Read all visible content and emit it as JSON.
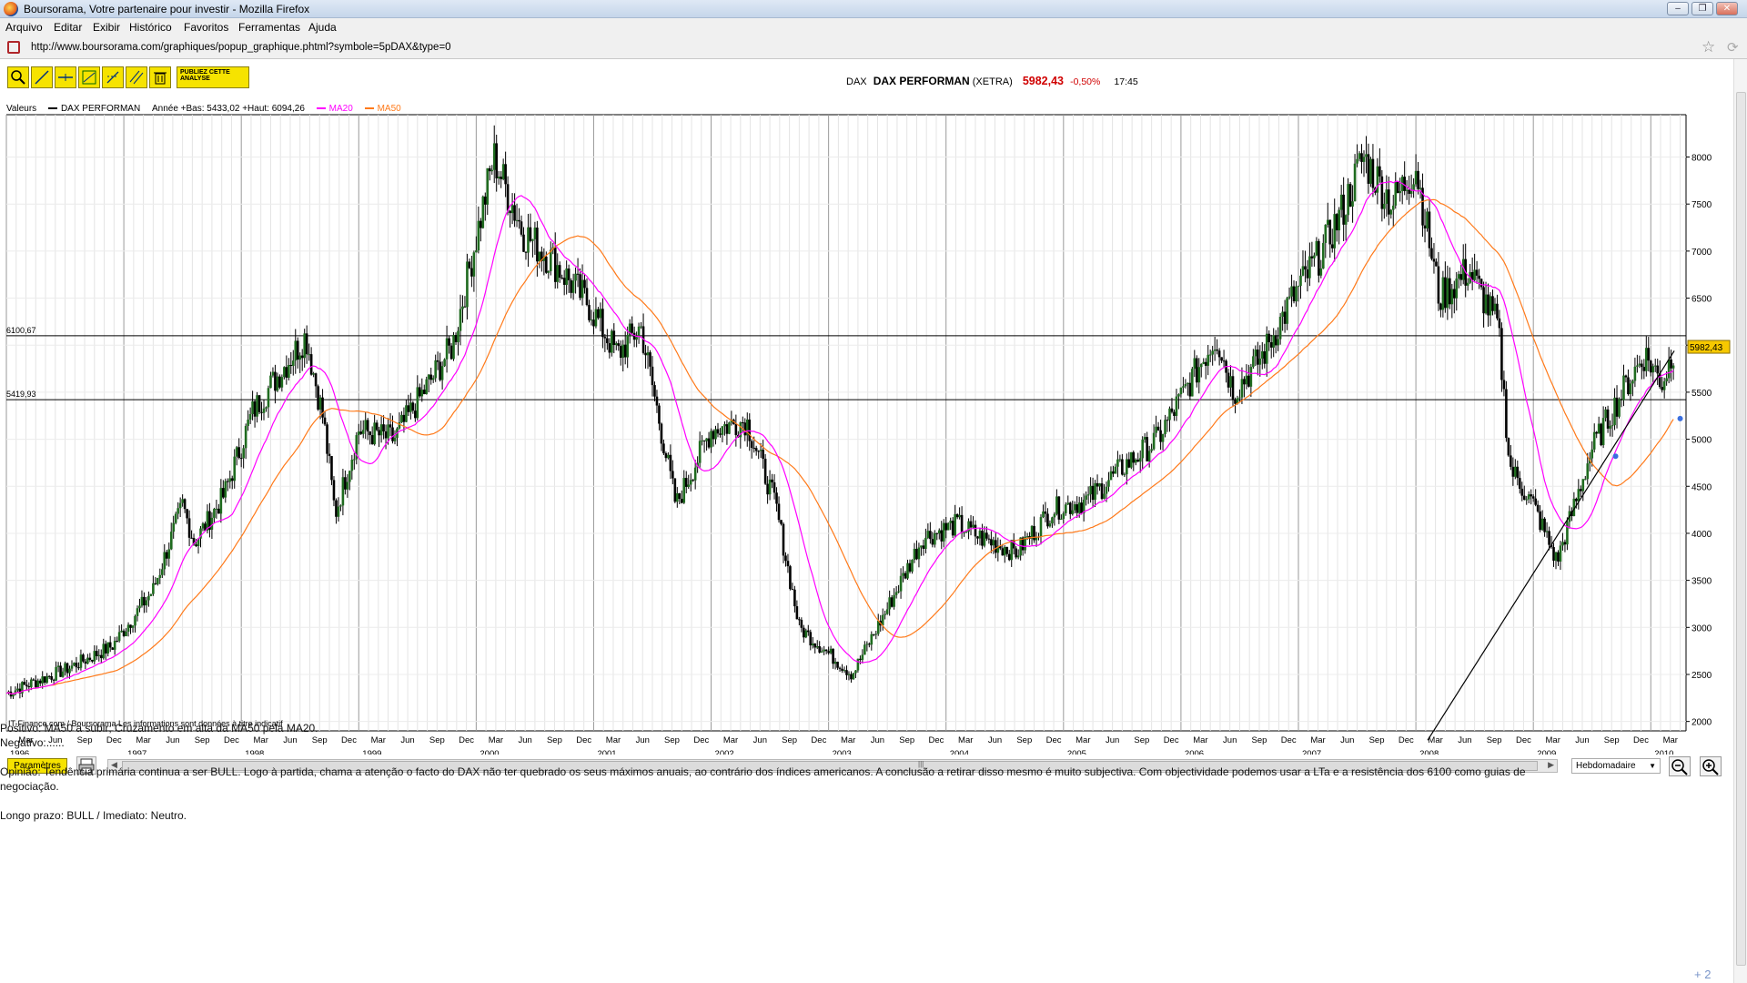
{
  "browser": {
    "window_title": "Boursorama, Votre partenaire pour investir - Mozilla Firefox",
    "menu": [
      "Arquivo",
      "Editar",
      "Exibir",
      "Histórico",
      "Favoritos",
      "Ferramentas",
      "Ajuda"
    ],
    "url": "http://www.boursorama.com/graphiques/popup_graphique.phtml?symbole=5pDAX&type=0"
  },
  "header": {
    "exchange": "DAX",
    "name": "DAX PERFORMAN",
    "market": "(XETRA)",
    "price": "5982,43",
    "change": "-0,50%",
    "time": "17:45"
  },
  "toolbar": {
    "publish_label": "PUBLIEZ CETTE ANALYSE"
  },
  "legend": {
    "values_label": "Valeurs",
    "series_name": "DAX PERFORMAN",
    "range_text": "Année +Bas: 5433,02 +Haut: 6094,26",
    "ma20_label": "MA20",
    "ma50_label": "MA50"
  },
  "chart_data": {
    "type": "line",
    "title": "DAX PERFORMAN",
    "ylim": [
      1900,
      8450
    ],
    "y_ticks": [
      2000,
      2500,
      3000,
      3500,
      4000,
      4500,
      5000,
      5500,
      6000,
      6500,
      7000,
      7500,
      8000
    ],
    "y_tick_labels": [
      "2000",
      "2500",
      "3000",
      "3500",
      "4000",
      "4500",
      "5000",
      "5500",
      "",
      "6500",
      "7000",
      "7500",
      "8000"
    ],
    "last_price_label": "5982,43",
    "horizontal_levels": [
      {
        "label": "6100,67",
        "value": 6100.67
      },
      {
        "label": "5419,93",
        "value": 5419.93
      }
    ],
    "trendline": {
      "from": [
        2008.1,
        1800
      ],
      "to": [
        2010.2,
        5940
      ]
    },
    "x_range": [
      1996.0,
      2010.3
    ],
    "month_labels": [
      "Mar",
      "Jun",
      "Sep",
      "Dec"
    ],
    "years": [
      "1996",
      "1997",
      "1998",
      "1999",
      "2000",
      "2001",
      "2002",
      "2003",
      "2004",
      "2005",
      "2006",
      "2007",
      "2008",
      "2009",
      "2010"
    ],
    "series": [
      {
        "name": "DAX PERFORMAN",
        "x": [
          1996.0,
          1996.5,
          1996.9,
          1997.25,
          1997.5,
          1997.6,
          1997.85,
          1998.1,
          1998.55,
          1998.7,
          1998.8,
          1999.0,
          1999.3,
          1999.5,
          1999.8,
          2000.15,
          2000.4,
          2000.65,
          2000.95,
          2001.2,
          2001.4,
          2001.7,
          2002.0,
          2002.3,
          2002.55,
          2002.75,
          2003.2,
          2003.5,
          2003.8,
          2004.1,
          2004.3,
          2004.6,
          2004.9,
          2005.2,
          2005.5,
          2005.8,
          2006.3,
          2006.45,
          2006.7,
          2006.95,
          2007.2,
          2007.4,
          2007.55,
          2007.8,
          2008.0,
          2008.2,
          2008.45,
          2008.7,
          2008.8,
          2009.0,
          2009.2,
          2009.5,
          2009.8,
          2009.95,
          2010.1,
          2010.2
        ],
        "values": [
          2300,
          2550,
          2800,
          3400,
          4300,
          3900,
          4400,
          5300,
          6100,
          5200,
          4200,
          5100,
          5000,
          5400,
          6000,
          8000,
          7200,
          6900,
          6450,
          5900,
          6200,
          4300,
          5100,
          5200,
          4300,
          3000,
          2500,
          3200,
          3950,
          4100,
          3950,
          3800,
          4250,
          4350,
          4700,
          5000,
          6100,
          5500,
          5900,
          6500,
          7000,
          7500,
          8000,
          7500,
          7900,
          6500,
          6800,
          6200,
          4700,
          4300,
          3700,
          4900,
          5600,
          5900,
          5600,
          5982.43
        ]
      }
    ],
    "ma20_color": "#ff00ff",
    "ma50_color": "#ff7a1a",
    "marker_dots": [
      [
        2009.7,
        4820
      ],
      [
        2010.25,
        5220
      ]
    ]
  },
  "chart_footer": {
    "credit": "IT-Finance.com / Boursorama Les informations sont données à titre indicatif"
  },
  "controls": {
    "params_label": "Paramètres",
    "period_value": "Hebdomadaire"
  },
  "commentary": {
    "positivo": "Positivo: MA50 a subir; Cruzamento em alta da MA50 pela MA20.",
    "negativo": "Negativo:......",
    "opiniao_line1": "Opinião: Tendência primária continua a ser BULL. Logo à partida, chama a atenção o facto do DAX não ter quebrado os seus máximos anuais, ao contrário dos índices americanos. A conclusão a retirar disso mesmo é muito subjectiva. Com objectividade podemos usar a LTa e a resistência dos 6100 como guias de",
    "opiniao_line2": "negociação.",
    "prazo": "Longo prazo: BULL  /  Imediato: Neutro.",
    "plus": "+ 2"
  }
}
